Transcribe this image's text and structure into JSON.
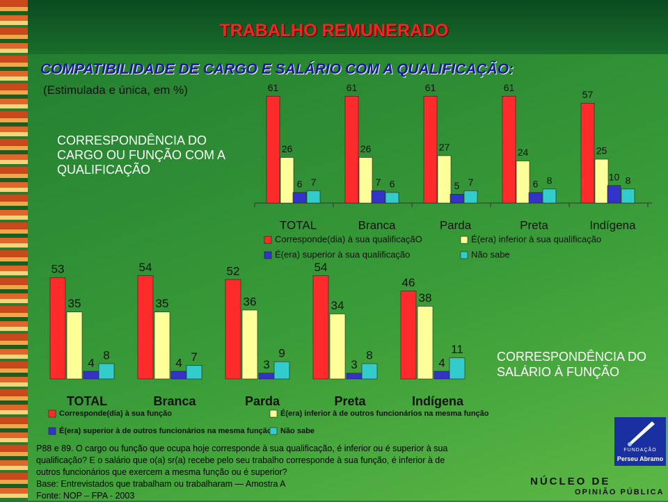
{
  "header": {
    "title": "TRABALHO REMUNERADO",
    "subtitle": "COMPATIBILIDADE DE CARGO E SALÁRIO COM A QUALIFICAÇÃO:",
    "note": "(Estimulada e única, em %)"
  },
  "chart_data": [
    {
      "type": "bar",
      "title": "CORRESPONDÊNCIA DO CARGO OU FUNÇÃO COM A QUALIFICAÇÃO",
      "categories": [
        "TOTAL",
        "Branca",
        "Parda",
        "Preta",
        "Indígena"
      ],
      "series": [
        {
          "name": "Corresponde(dia) à sua qualificaçãO",
          "color": "#ff2a2a",
          "values": [
            61,
            61,
            61,
            61,
            57
          ]
        },
        {
          "name": "É(era) inferior à sua qualificação",
          "color": "#ffff99",
          "values": [
            26,
            26,
            27,
            24,
            25
          ]
        },
        {
          "name": "É(era) superior à sua qualificação",
          "color": "#3333cc",
          "values": [
            6,
            7,
            5,
            6,
            10
          ]
        },
        {
          "name": "Não sabe",
          "color": "#33cccc",
          "values": [
            7,
            6,
            7,
            8,
            8
          ]
        }
      ]
    },
    {
      "type": "bar",
      "title": "CORRESPONDÊNCIA DO SALÁRIO À FUNÇÃO",
      "categories": [
        "TOTAL",
        "Branca",
        "Parda",
        "Preta",
        "Indígena"
      ],
      "series": [
        {
          "name": "Corresponde(dia) à sua função",
          "color": "#ff2a2a",
          "values": [
            53,
            54,
            52,
            54,
            46
          ]
        },
        {
          "name": "É(era) inferior à de outros funcionários na mesma função",
          "color": "#ffff99",
          "values": [
            35,
            35,
            36,
            34,
            38
          ]
        },
        {
          "name": "É(era) superior à de outros funcionários na mesma função",
          "color": "#3333cc",
          "values": [
            4,
            4,
            3,
            3,
            4
          ]
        },
        {
          "name": "Não sabe",
          "color": "#33cccc",
          "values": [
            8,
            7,
            9,
            8,
            11
          ]
        }
      ]
    }
  ],
  "footer": {
    "question": "P88 e 89. O cargo ou função que ocupa hoje corresponde à sua qualificação, é inferior ou é superior à sua qualificação? E o salário que o(a) sr(a) recebe pelo seu trabalho corresponde à sua função, é inferior à de outros funcionários que exercem a mesma função ou é superior?",
    "base": "Base: Entrevistados que trabalham ou trabalharam — Amostra A",
    "source": "Fonte: NOP – FPA - 2003"
  },
  "logo": {
    "foundation": "FUNDAÇÃO",
    "foundation_name": "Perseu Abramo",
    "line1": "NÚCLEO DE",
    "line2": "OPINIÃO PÚBLICA"
  }
}
